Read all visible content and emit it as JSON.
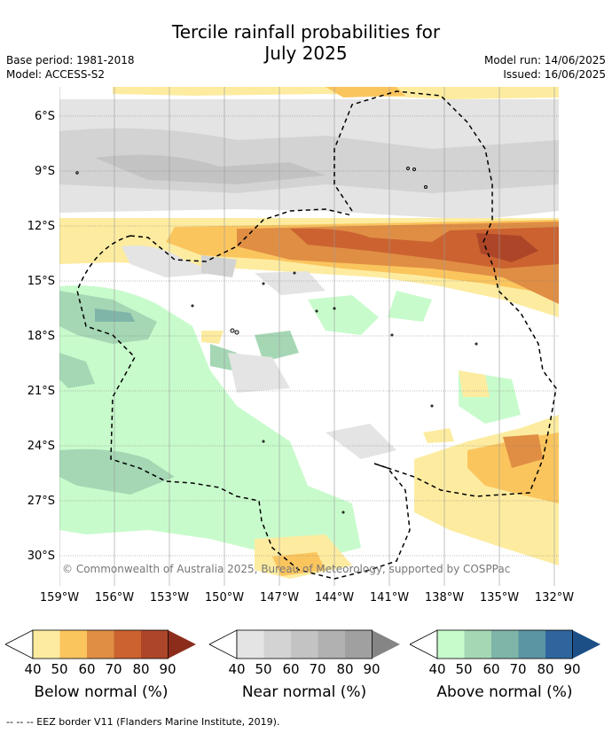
{
  "title_line1": "Tercile rainfall probabilities for",
  "title_line2": "July 2025",
  "base_period": "Base period: 1981-2018",
  "model": "Model: ACCESS-S2",
  "model_run": "Model run: 14/06/2025",
  "issued": "Issued: 16/06/2025",
  "lat_labels": [
    "6°S",
    "9°S",
    "12°S",
    "15°S",
    "18°S",
    "21°S",
    "24°S",
    "27°S",
    "30°S"
  ],
  "lon_labels": [
    "159°W",
    "156°W",
    "153°W",
    "150°W",
    "147°W",
    "144°W",
    "141°W",
    "138°W",
    "135°W",
    "132°W"
  ],
  "copyright": "© Commonwealth of Australia 2025, Bureau of Meteorology, supported by COSPPac",
  "colorbars": [
    {
      "title": "Below normal (%)",
      "ticks": [
        "40",
        "50",
        "60",
        "70",
        "80",
        "90"
      ],
      "colors": [
        "#fdeca0",
        "#fbc55e",
        "#e08e44",
        "#cb6230",
        "#ad4628",
        "#8c2d1c"
      ]
    },
    {
      "title": "Near normal (%)",
      "ticks": [
        "40",
        "50",
        "60",
        "70",
        "80",
        "90"
      ],
      "colors": [
        "#e4e4e4",
        "#d3d3d3",
        "#c3c3c3",
        "#b1b1b1",
        "#a0a0a0",
        "#858585"
      ]
    },
    {
      "title": "Above normal (%)",
      "ticks": [
        "40",
        "50",
        "60",
        "70",
        "80",
        "90"
      ],
      "colors": [
        "#c8fbcc",
        "#a5d7b4",
        "#7fb5a9",
        "#5b95a4",
        "#2e659c",
        "#1c4f86"
      ]
    }
  ],
  "footer": "-- -- -- EEZ border V11 (Flanders Marine Institute, 2019)."
}
